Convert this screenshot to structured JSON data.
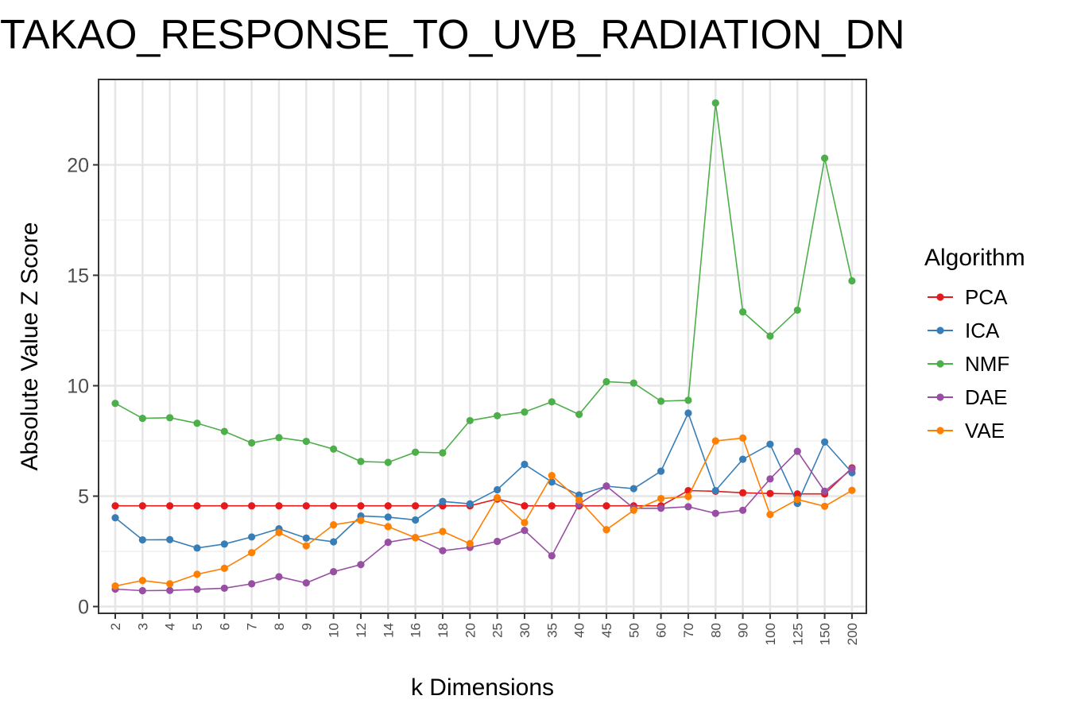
{
  "chart_data": {
    "type": "line",
    "title": "TAKAO_RESPONSE_TO_UVB_RADIATION_DN",
    "xlabel": "k Dimensions",
    "ylabel": "Absolute Value Z Score",
    "categories": [
      "2",
      "3",
      "4",
      "5",
      "6",
      "7",
      "8",
      "9",
      "10",
      "12",
      "14",
      "16",
      "18",
      "20",
      "25",
      "30",
      "35",
      "40",
      "45",
      "50",
      "60",
      "70",
      "80",
      "90",
      "100",
      "125",
      "150",
      "200"
    ],
    "yticks": [
      0,
      5,
      10,
      15,
      20
    ],
    "ylim": [
      -0.35,
      23.9
    ],
    "grid": true,
    "legend": {
      "title": "Algorithm",
      "position": "right"
    },
    "series": [
      {
        "name": "PCA",
        "color": "#E41A1C",
        "values": [
          4.56,
          4.56,
          4.56,
          4.56,
          4.56,
          4.56,
          4.56,
          4.56,
          4.56,
          4.56,
          4.56,
          4.56,
          4.56,
          4.56,
          4.87,
          4.56,
          4.56,
          4.56,
          4.56,
          4.56,
          4.56,
          5.25,
          5.22,
          5.15,
          5.12,
          5.1,
          5.1,
          6.28
        ]
      },
      {
        "name": "ICA",
        "color": "#377EB8",
        "values": [
          4.02,
          3.02,
          3.03,
          2.65,
          2.83,
          3.15,
          3.52,
          3.1,
          2.93,
          4.1,
          4.05,
          3.92,
          4.76,
          4.65,
          5.29,
          6.44,
          5.64,
          5.05,
          5.45,
          5.34,
          6.13,
          8.76,
          5.25,
          6.67,
          7.35,
          4.67,
          7.45,
          6.06
        ]
      },
      {
        "name": "NMF",
        "color": "#4DAF4A",
        "values": [
          9.2,
          8.52,
          8.55,
          8.3,
          7.93,
          7.41,
          7.65,
          7.48,
          7.13,
          6.57,
          6.53,
          6.99,
          6.96,
          8.42,
          8.64,
          8.81,
          9.27,
          8.7,
          10.18,
          10.12,
          9.3,
          9.34,
          22.8,
          13.34,
          12.25,
          13.42,
          20.3,
          14.75
        ]
      },
      {
        "name": "DAE",
        "color": "#984EA3",
        "values": [
          0.79,
          0.72,
          0.73,
          0.78,
          0.83,
          1.03,
          1.35,
          1.07,
          1.58,
          1.9,
          2.91,
          3.12,
          2.53,
          2.68,
          2.95,
          3.45,
          2.3,
          4.64,
          5.46,
          4.45,
          4.45,
          4.52,
          4.22,
          4.36,
          5.78,
          7.03,
          5.22,
          6.23
        ]
      },
      {
        "name": "VAE",
        "color": "#FF7F00",
        "values": [
          0.93,
          1.18,
          1.03,
          1.46,
          1.73,
          2.44,
          3.35,
          2.75,
          3.7,
          3.9,
          3.62,
          3.12,
          3.4,
          2.85,
          4.93,
          3.8,
          5.93,
          4.82,
          3.48,
          4.36,
          4.89,
          4.98,
          7.5,
          7.63,
          4.17,
          4.85,
          4.54,
          5.26
        ]
      }
    ]
  }
}
